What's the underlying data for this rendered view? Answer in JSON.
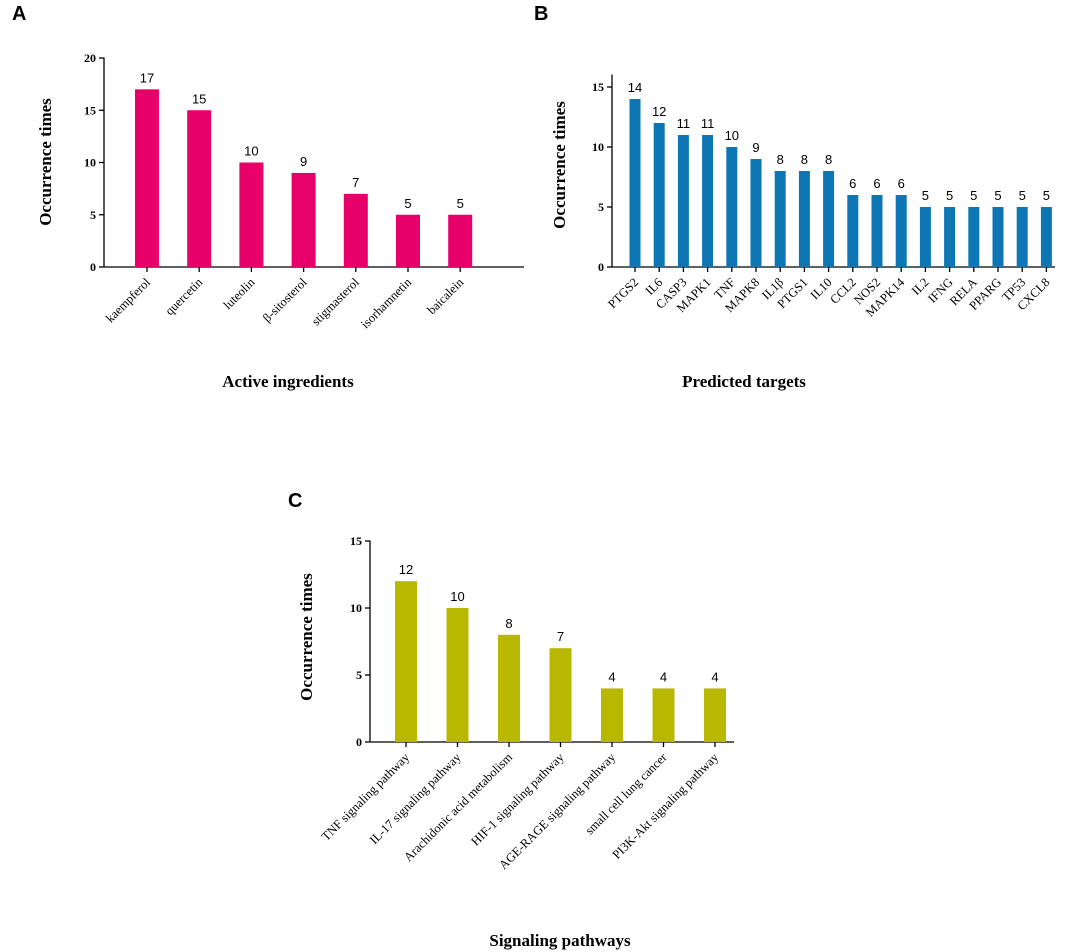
{
  "chart_data": [
    {
      "panel": "A",
      "type": "bar",
      "title": "",
      "xlabel": "Active ingredients",
      "ylabel": "Occurrence times",
      "categories": [
        "kaempferol",
        "quercetin",
        "luteolin",
        "β-sitosterol",
        "stigmasterol",
        "isorhamnetin",
        "baicalein"
      ],
      "values": [
        17,
        15,
        10,
        9,
        7,
        5,
        5
      ],
      "ylim": [
        0,
        20
      ],
      "yticks": [
        0,
        5,
        10,
        15,
        20
      ],
      "color": "#e8006a",
      "grid": false
    },
    {
      "panel": "B",
      "type": "bar",
      "title": "",
      "xlabel": "Predicted targets",
      "ylabel": "Occurrence times",
      "categories": [
        "PTGS2",
        "IL6",
        "CASP3",
        "MAPK1",
        "TNF",
        "MAPK8",
        "IL1β",
        "PTGS1",
        "IL10",
        "CCL2",
        "NOS2",
        "MAPK14",
        "IL2",
        "IFNG",
        "RELA",
        "PPARG",
        "TP53",
        "CXCL8"
      ],
      "values": [
        14,
        12,
        11,
        11,
        10,
        9,
        8,
        8,
        8,
        6,
        6,
        6,
        5,
        5,
        5,
        5,
        5,
        5
      ],
      "ylim": [
        0,
        16
      ],
      "yticks": [
        0,
        5,
        10,
        15
      ],
      "color": "#0d77b5",
      "grid": false
    },
    {
      "panel": "C",
      "type": "bar",
      "title": "",
      "xlabel": "Signaling pathways",
      "ylabel": "Occurrence times",
      "categories": [
        "TNF signaling pathway",
        "IL-17 signaling pathway",
        "Arachidonic acid metabolism",
        "HIF-1 signaling pathway",
        "AGE-RAGE signaling pathway",
        "small cell lung cancer",
        "PI3K-Akt signaling pathway"
      ],
      "values": [
        12,
        10,
        8,
        7,
        4,
        4,
        4
      ],
      "ylim": [
        0,
        15
      ],
      "yticks": [
        0,
        5,
        10,
        15
      ],
      "color": "#b8b800",
      "grid": false
    }
  ]
}
